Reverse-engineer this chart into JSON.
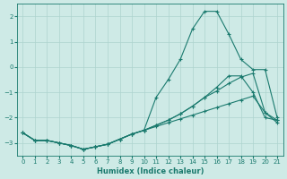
{
  "xlabel": "Humidex (Indice chaleur)",
  "background_color": "#ceeae6",
  "grid_color": "#aed4ce",
  "line_color": "#1a7a6e",
  "xlim": [
    -0.5,
    21.5
  ],
  "ylim": [
    -3.5,
    2.5
  ],
  "xticks": [
    0,
    1,
    2,
    3,
    4,
    5,
    6,
    7,
    8,
    9,
    10,
    11,
    12,
    13,
    14,
    15,
    16,
    17,
    18,
    19,
    20,
    21
  ],
  "yticks": [
    -3,
    -2,
    -1,
    0,
    1,
    2
  ],
  "series": [
    {
      "x": [
        0,
        1,
        2,
        3,
        4,
        5,
        6,
        7,
        8,
        9,
        10,
        11,
        12,
        13,
        14,
        15,
        16,
        17,
        18,
        19,
        20,
        21
      ],
      "y": [
        -2.6,
        -2.9,
        -2.9,
        -3.0,
        -3.1,
        -3.25,
        -3.15,
        -3.05,
        -2.85,
        -2.65,
        -2.5,
        -1.2,
        -0.5,
        0.3,
        1.5,
        2.2,
        2.2,
        1.3,
        0.3,
        -0.1,
        -0.1,
        -2.0
      ]
    },
    {
      "x": [
        0,
        1,
        2,
        3,
        4,
        5,
        6,
        7,
        8,
        9,
        10,
        11,
        12,
        13,
        14,
        15,
        16,
        17,
        18,
        19,
        20,
        21
      ],
      "y": [
        -2.6,
        -2.9,
        -2.9,
        -3.0,
        -3.1,
        -3.25,
        -3.15,
        -3.05,
        -2.85,
        -2.65,
        -2.5,
        -2.3,
        -2.1,
        -1.85,
        -1.55,
        -1.2,
        -0.8,
        -0.35,
        -0.35,
        -1.0,
        -2.0,
        -2.1
      ]
    },
    {
      "x": [
        0,
        1,
        2,
        3,
        4,
        5,
        6,
        7,
        8,
        9,
        10,
        11,
        12,
        13,
        14,
        15,
        16,
        17,
        18,
        19,
        20,
        21
      ],
      "y": [
        -2.6,
        -2.9,
        -2.9,
        -3.0,
        -3.1,
        -3.25,
        -3.15,
        -3.05,
        -2.85,
        -2.65,
        -2.5,
        -2.3,
        -2.1,
        -1.85,
        -1.55,
        -1.2,
        -0.95,
        -0.65,
        -0.4,
        -0.25,
        -1.8,
        -2.1
      ]
    },
    {
      "x": [
        0,
        1,
        2,
        3,
        4,
        5,
        6,
        7,
        8,
        9,
        10,
        11,
        12,
        13,
        14,
        15,
        16,
        17,
        18,
        19,
        20,
        21
      ],
      "y": [
        -2.6,
        -2.9,
        -2.9,
        -3.0,
        -3.1,
        -3.25,
        -3.15,
        -3.05,
        -2.85,
        -2.65,
        -2.5,
        -2.35,
        -2.2,
        -2.05,
        -1.9,
        -1.75,
        -1.6,
        -1.45,
        -1.3,
        -1.15,
        -1.8,
        -2.2
      ]
    }
  ]
}
